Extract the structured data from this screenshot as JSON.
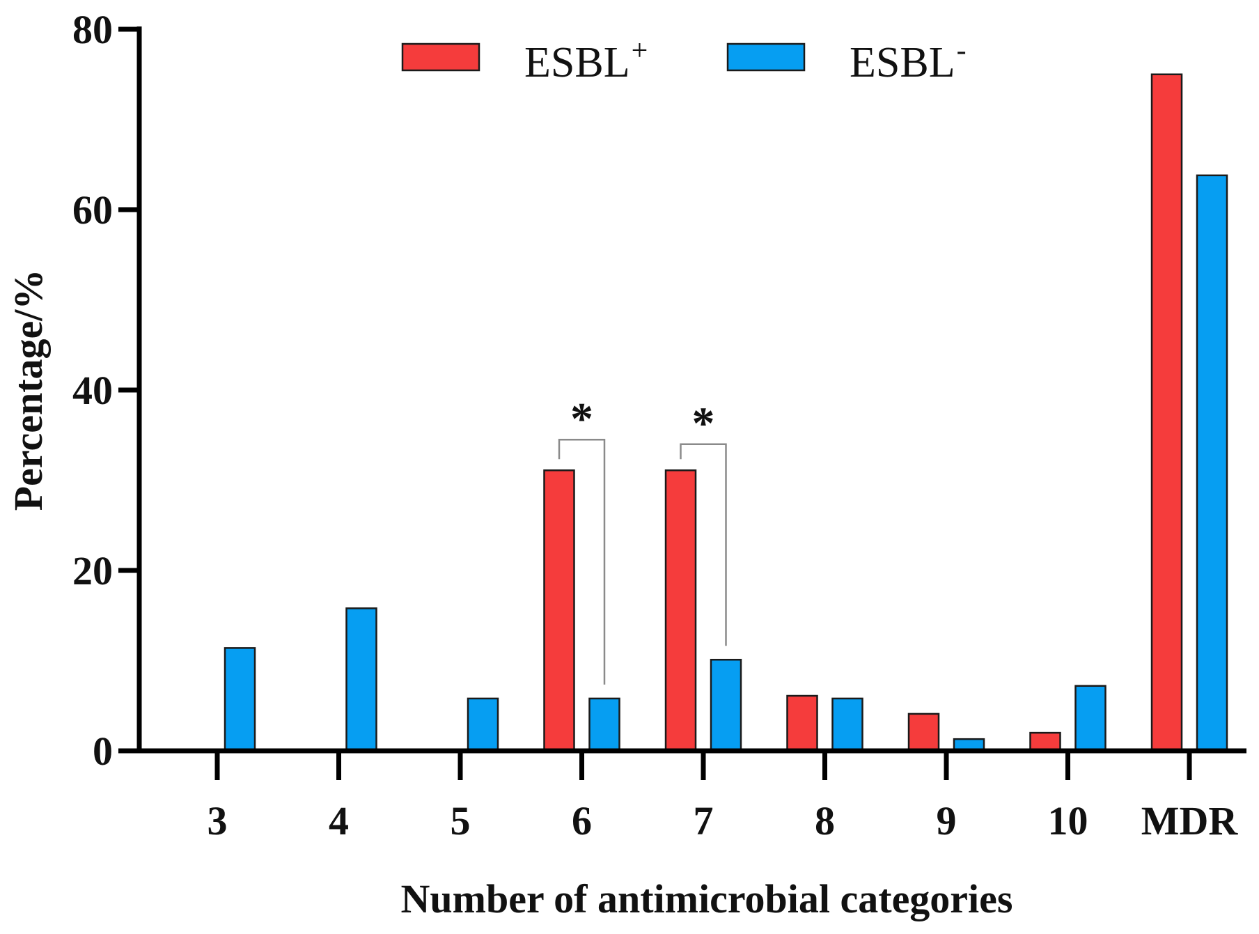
{
  "chart_data": {
    "type": "bar",
    "categories": [
      "3",
      "4",
      "5",
      "6",
      "7",
      "8",
      "9",
      "10",
      "MDR"
    ],
    "series": [
      {
        "name": "ESBL",
        "sup": "+",
        "color": "#f53c3c",
        "values": [
          0,
          0,
          0,
          31.1,
          31.1,
          6.1,
          4.1,
          2.0,
          75.0
        ]
      },
      {
        "name": "ESBL",
        "sup": "-",
        "color": "#069ef2",
        "values": [
          11.4,
          15.8,
          5.8,
          5.8,
          10.1,
          5.8,
          1.3,
          7.2,
          63.8
        ]
      }
    ],
    "xlabel": "Number of antimicrobial categories",
    "ylabel": "Percentage/%",
    "ylim": [
      0,
      80
    ],
    "yticks": [
      "0",
      "20",
      "40",
      "60",
      "80"
    ],
    "legend_position": "top-center",
    "annotations": [
      {
        "category": "6",
        "text": "*",
        "bracket_top": 34.5
      },
      {
        "category": "7",
        "text": "*",
        "bracket_top": 34.0
      }
    ]
  }
}
